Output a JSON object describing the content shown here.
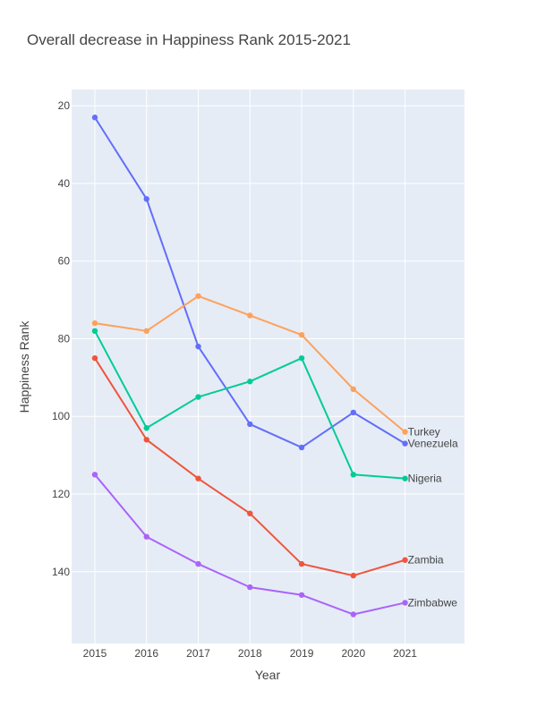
{
  "chart_data": {
    "type": "line",
    "title": "Overall decrease in Happiness Rank 2015-2021",
    "xlabel": "Year",
    "ylabel": "Happiness Rank",
    "x": [
      2015,
      2016,
      2017,
      2018,
      2019,
      2020,
      2021
    ],
    "x_ticks": [
      "2015",
      "2016",
      "2017",
      "2018",
      "2019",
      "2020",
      "2021"
    ],
    "xlim": [
      2014.55,
      2022.15
    ],
    "ylim": [
      158.5,
      15.8
    ],
    "y_reversed": true,
    "y_ticks": [
      20,
      40,
      60,
      80,
      100,
      120,
      140
    ],
    "grid": true,
    "plot_background": "#e5ecf6",
    "series": [
      {
        "name": "Venezuela",
        "color": "#636efa",
        "values": [
          23,
          44,
          82,
          102,
          108,
          99,
          107
        ]
      },
      {
        "name": "Zambia",
        "color": "#ef553b",
        "values": [
          85,
          106,
          116,
          125,
          138,
          141,
          137
        ]
      },
      {
        "name": "Nigeria",
        "color": "#00cc96",
        "values": [
          78,
          103,
          95,
          91,
          85,
          115,
          116
        ]
      },
      {
        "name": "Zimbabwe",
        "color": "#ab63fa",
        "values": [
          115,
          131,
          138,
          144,
          146,
          151,
          148
        ]
      },
      {
        "name": "Turkey",
        "color": "#ffa15a",
        "values": [
          76,
          78,
          69,
          74,
          79,
          93,
          104
        ]
      }
    ]
  }
}
